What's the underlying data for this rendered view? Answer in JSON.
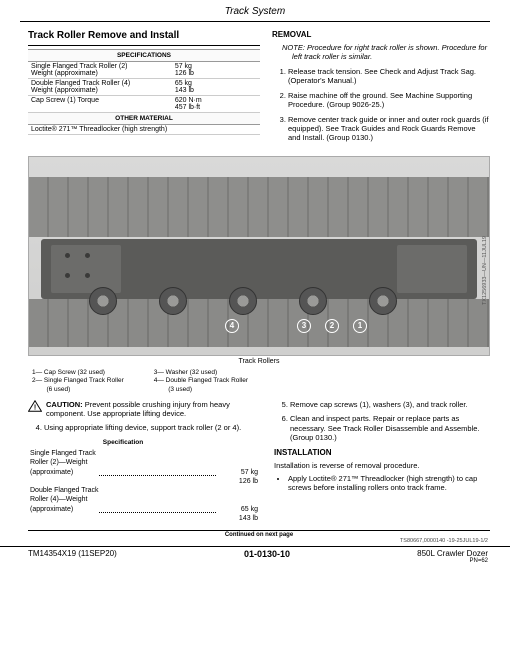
{
  "header": {
    "section": "Track System"
  },
  "title": "Track Roller Remove and Install",
  "spec_header": "SPECIFICATIONS",
  "spec_rows": [
    {
      "l": "Single Flanged Track Roller (2)\nWeight (approximate)",
      "r": "57 kg\n126 lb"
    },
    {
      "l": "Double Flanged Track Roller (4)\nWeight (approximate)",
      "r": "65 kg\n143 lb"
    },
    {
      "l": "Cap Screw (1) Torque",
      "r": "620 N·m\n457 lb·ft"
    }
  ],
  "other_header": "OTHER MATERIAL",
  "other_row": "Loctite® 271™ Threadlocker (high strength)",
  "removal_h": "REMOVAL",
  "note": "NOTE: Procedure for right track roller is shown. Procedure for left track roller is similar.",
  "steps123": [
    "Release track tension. See Check and Adjust Track Sag. (Operator's Manual.)",
    "Raise machine off the ground. See Machine Supporting Procedure. (Group 9026-25.)",
    "Remove center track guide or inner and outer rock guards (if equipped). See Track Guides and Rock Guards Remove and Install. (Group 0130.)"
  ],
  "fig_caption": "Track Rollers",
  "fig_side_id": "TX1256933—UN—11JUL19",
  "legend_left": "1— Cap Screw (32 used)\n2— Single Flanged Track Roller\n        (6 used)",
  "legend_right": "3— Washer (32 used)\n4— Double Flanged Track Roller\n        (3 used)",
  "caution": "CAUTION: Prevent possible crushing injury from heavy component. Use appropriate lifting device.",
  "step4": "Using appropriate lifting device, support track roller (2 or 4).",
  "spec2_header": "Specification",
  "spec2_rows": [
    {
      "l1": "Single Flanged Track",
      "l2": "Roller (2)—Weight",
      "l3": "(approximate)",
      "v1": "57 kg",
      "v2": "126 lb"
    },
    {
      "l1": "Double Flanged Track",
      "l2": "Roller (4)—Weight",
      "l3": "(approximate)",
      "v1": "65 kg",
      "v2": "143 lb"
    }
  ],
  "step5": "Remove cap screws (1), washers (3), and track roller.",
  "step6": "Clean and inspect parts. Repair or replace parts as necessary. See Track Roller Disassemble and Assemble. (Group 0130.)",
  "install_h": "INSTALLATION",
  "install_txt": "Installation is reverse of removal procedure.",
  "install_bullet": "Apply Loctite® 271™ Threadlocker (high strength) to cap screws before installing rollers onto track frame.",
  "continued": "Continued on next page",
  "foot_id": "TS80667,0000140 -19-25JUL19-1/2",
  "footer": {
    "l": "TM14354X19 (11SEP20)",
    "c": "01-0130-10",
    "r": "850L Crawler Dozer",
    "pn": "PN=62"
  }
}
